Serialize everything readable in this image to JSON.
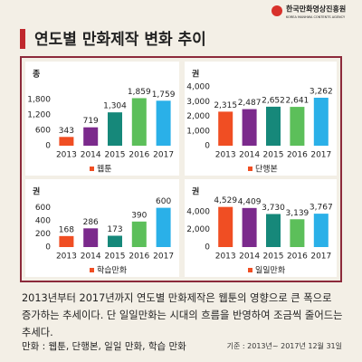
{
  "header": {
    "logo": "한국만화영상진흥원",
    "logo_sub": "KOREA MANHWA CONTENTS AGENCY",
    "title": "연도별 만화제작 변화 추이"
  },
  "chart_data": [
    {
      "type": "bar",
      "unit": "종",
      "legend": "웹툰",
      "legend_color": "#f04e23",
      "categories": [
        "2013",
        "2014",
        "2015",
        "2016",
        "2017"
      ],
      "values": [
        343,
        719,
        1304,
        1859,
        1759
      ],
      "value_labels": [
        "343",
        "719",
        "1,304",
        "1,859",
        "1,759"
      ],
      "colors": [
        "#f04e23",
        "#7b2a8c",
        "#16887a",
        "#5cbf5a",
        "#2ab0e8"
      ],
      "ylim": [
        0,
        2300
      ],
      "yticks": [
        0,
        600,
        {
          "value": 1200,
          "label": "1,200"
        },
        {
          "value": 1800,
          "label": "1,800"
        }
      ]
    },
    {
      "type": "bar",
      "unit": "권",
      "legend": "단행본",
      "legend_color": "#f04e23",
      "categories": [
        "2013",
        "2014",
        "2015",
        "2016",
        "2017"
      ],
      "values": [
        2315,
        2487,
        2652,
        2641,
        3262
      ],
      "value_labels": [
        "2,315",
        "2,487",
        "2,652",
        "2,641",
        "3,262"
      ],
      "colors": [
        "#f04e23",
        "#7b2a8c",
        "#16887a",
        "#5cbf5a",
        "#2ab0e8"
      ],
      "ylim": [
        0,
        4000
      ],
      "yticks": [
        0,
        {
          "value": 1000,
          "label": "1,000"
        },
        {
          "value": 2000,
          "label": "2,000"
        },
        {
          "value": 3000,
          "label": "3,000"
        },
        {
          "value": 4000,
          "label": "4,000"
        }
      ]
    },
    {
      "type": "bar",
      "unit": "권",
      "legend": "학습만화",
      "legend_color": "#f04e23",
      "categories": [
        "2013",
        "2014",
        "2015",
        "2016",
        "2017"
      ],
      "values": [
        168,
        286,
        173,
        390,
        600
      ],
      "value_labels": [
        "168",
        "286",
        "173",
        "390",
        "600"
      ],
      "colors": [
        "#f04e23",
        "#7b2a8c",
        "#16887a",
        "#5cbf5a",
        "#2ab0e8"
      ],
      "ylim": [
        0,
        650
      ],
      "yticks": [
        0,
        200,
        400,
        600
      ]
    },
    {
      "type": "bar",
      "unit": "권",
      "legend": "일일만화",
      "legend_color": "#f04e23",
      "categories": [
        "2013",
        "2014",
        "2015",
        "2016",
        "2017"
      ],
      "values": [
        4529,
        4409,
        3730,
        3139,
        3767
      ],
      "value_labels": [
        "4,529",
        "4,409",
        "3,730",
        "3,139",
        "3,767"
      ],
      "colors": [
        "#f04e23",
        "#7b2a8c",
        "#16887a",
        "#5cbf5a",
        "#2ab0e8"
      ],
      "ylim": [
        0,
        4800
      ],
      "yticks": [
        0,
        {
          "value": 2000,
          "label": "2,000"
        },
        {
          "value": 4000,
          "label": "4,000"
        }
      ]
    }
  ],
  "description": "2013년부터 2017년까지 연도별 만화제작은 웹툰의 영향으로 큰 폭으로 증가하는 추세이다. 단 일일만화는 시대의 흐름을 반영하여 조금씩 줄어드는 추세다.",
  "footer": {
    "note": "만화 : 웹툰, 단행본, 일일 만화, 학습 만화",
    "basis": "기준 : 2013년~ 2017년 12월 31일"
  }
}
